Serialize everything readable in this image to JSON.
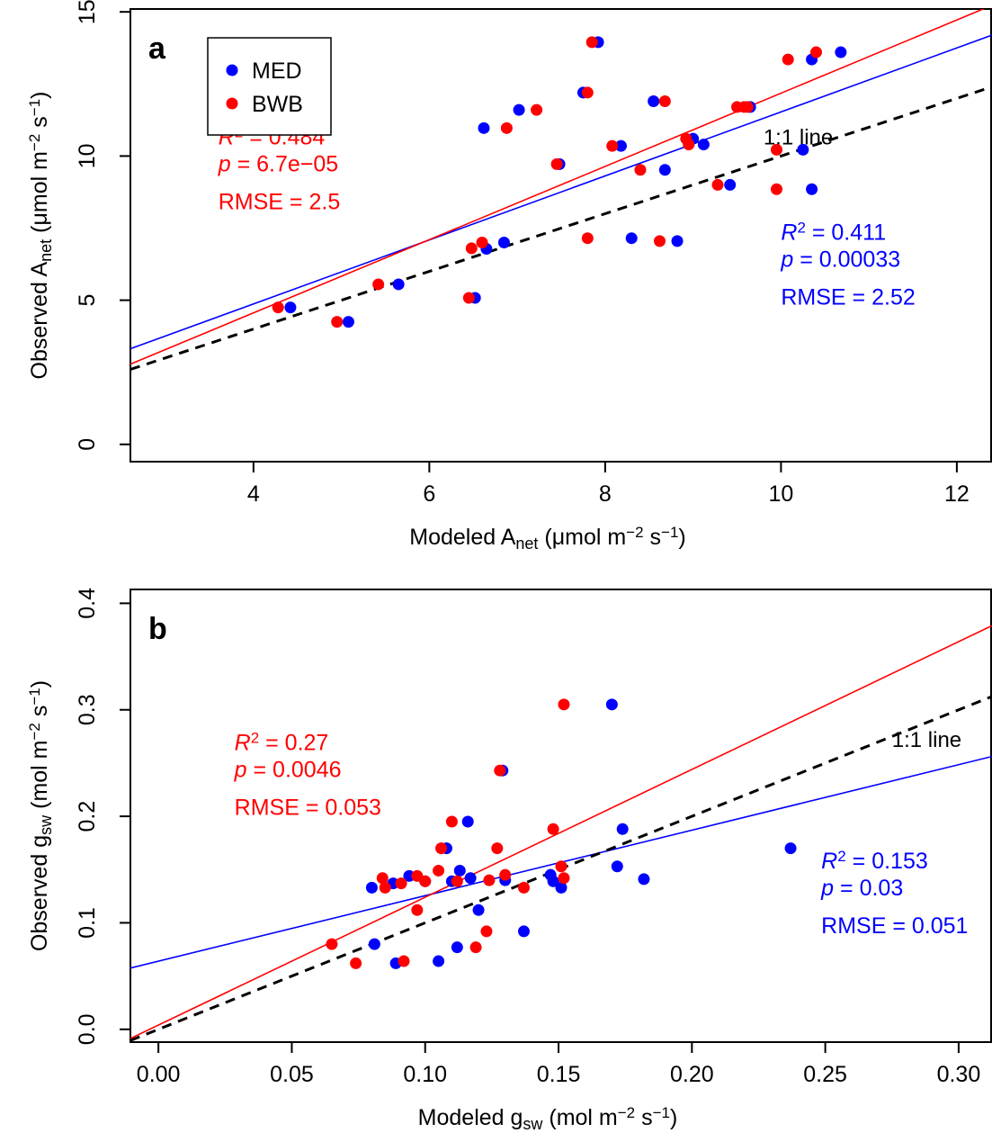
{
  "chart_data": [
    {
      "type": "scatter",
      "panel_label": "a",
      "xlabel": {
        "main": "Modeled A",
        "sub": "net",
        "unit_open": " (μmol m",
        "sup1": "−2",
        "unit_mid": " s",
        "sup2": "−1",
        "unit_close": ")"
      },
      "ylabel": {
        "main": "Observed A",
        "sub": "net",
        "unit_open": " (μmol m",
        "sup1": "−2",
        "unit_mid": " s",
        "sup2": "−1",
        "unit_close": ")"
      },
      "xlim": [
        2.6,
        12.4
      ],
      "ylim": [
        -0.6,
        15.1
      ],
      "xticks": [
        4,
        6,
        8,
        10,
        12
      ],
      "xtick_labels": [
        "4",
        "6",
        "8",
        "10",
        "12"
      ],
      "yticks": [
        0,
        5,
        10,
        15
      ],
      "ytick_labels": [
        "0",
        "5",
        "10",
        "15"
      ],
      "legend": {
        "position": "top-left",
        "entries": [
          {
            "name": "MED",
            "color": "#0000ff"
          },
          {
            "name": "BWB",
            "color": "#ff0000"
          }
        ]
      },
      "one_to_one_label": "1:1 line",
      "one_to_one_label_pos": [
        9.8,
        10.4
      ],
      "series": [
        {
          "name": "MED",
          "color": "#0000ff",
          "fit": {
            "intercept": 0.43,
            "slope": 1.11
          },
          "annotation": {
            "r2_symbol": "R",
            "r2_sup": "2",
            "r2_value": " = 0.411",
            "p_symbol": "p",
            "p_value": " = 0.00033",
            "rmse": "RMSE = 2.52",
            "anchor": [
              10.0,
              7.1
            ]
          },
          "points": [
            [
              4.42,
              4.75
            ],
            [
              5.08,
              4.25
            ],
            [
              5.65,
              5.55
            ],
            [
              6.52,
              5.08
            ],
            [
              6.62,
              10.97
            ],
            [
              6.65,
              6.78
            ],
            [
              6.85,
              7.0
            ],
            [
              7.02,
              11.6
            ],
            [
              7.48,
              9.72
            ],
            [
              7.75,
              12.2
            ],
            [
              7.92,
              13.95
            ],
            [
              8.18,
              10.35
            ],
            [
              8.3,
              7.15
            ],
            [
              8.55,
              11.9
            ],
            [
              8.68,
              9.52
            ],
            [
              8.82,
              7.05
            ],
            [
              8.95,
              10.55
            ],
            [
              9.0,
              10.6
            ],
            [
              9.12,
              10.4
            ],
            [
              9.42,
              9.0
            ],
            [
              9.65,
              11.7
            ],
            [
              10.25,
              10.22
            ],
            [
              10.35,
              8.85
            ],
            [
              10.35,
              13.35
            ],
            [
              10.68,
              13.6
            ]
          ]
        },
        {
          "name": "BWB",
          "color": "#ff0000",
          "fit": {
            "intercept": -0.52,
            "slope": 1.27
          },
          "annotation": {
            "r2_symbol": "R",
            "r2_sup": "2",
            "r2_value": " = 0.484",
            "p_symbol": "p",
            "p_value": " = 6.7e−05",
            "rmse": "RMSE = 2.5",
            "anchor": [
              3.6,
              10.4
            ]
          },
          "points": [
            [
              4.28,
              4.75
            ],
            [
              4.95,
              4.25
            ],
            [
              5.42,
              5.55
            ],
            [
              6.45,
              5.08
            ],
            [
              6.48,
              6.8
            ],
            [
              6.6,
              7.0
            ],
            [
              6.88,
              10.97
            ],
            [
              7.22,
              11.6
            ],
            [
              7.45,
              9.72
            ],
            [
              7.8,
              12.2
            ],
            [
              7.8,
              7.15
            ],
            [
              7.85,
              13.95
            ],
            [
              8.08,
              10.35
            ],
            [
              8.4,
              9.52
            ],
            [
              8.62,
              7.05
            ],
            [
              8.68,
              11.9
            ],
            [
              8.92,
              10.6
            ],
            [
              8.95,
              10.4
            ],
            [
              9.28,
              9.0
            ],
            [
              9.5,
              11.7
            ],
            [
              9.58,
              11.7
            ],
            [
              9.62,
              11.7
            ],
            [
              9.95,
              10.22
            ],
            [
              9.95,
              8.85
            ],
            [
              10.08,
              13.35
            ],
            [
              10.4,
              13.6
            ]
          ]
        }
      ]
    },
    {
      "type": "scatter",
      "panel_label": "b",
      "xlabel": {
        "main": "Modeled g",
        "sub": "sw",
        "unit_open": " (mol m",
        "sup1": "−2",
        "unit_mid": " s",
        "sup2": "−1",
        "unit_close": ")"
      },
      "ylabel": {
        "main": "Observed g",
        "sub": "sw",
        "unit_open": " (mol m",
        "sup1": "−2",
        "unit_mid": " s",
        "sup2": "−1",
        "unit_close": ")"
      },
      "xlim": [
        -0.0105,
        0.3125
      ],
      "ylim": [
        -0.012,
        0.413
      ],
      "xticks": [
        0.0,
        0.05,
        0.1,
        0.15,
        0.2,
        0.25,
        0.3
      ],
      "xtick_labels": [
        "0.00",
        "0.05",
        "0.10",
        "0.15",
        "0.20",
        "0.25",
        "0.30"
      ],
      "yticks": [
        0.0,
        0.1,
        0.2,
        0.3,
        0.4
      ],
      "ytick_labels": [
        "0.0",
        "0.1",
        "0.2",
        "0.3",
        "0.4"
      ],
      "one_to_one_label": "1:1 line",
      "one_to_one_label_pos": [
        0.275,
        0.265
      ],
      "series": [
        {
          "name": "MED",
          "color": "#0000ff",
          "fit": {
            "intercept": 0.064,
            "slope": 0.615
          },
          "annotation": {
            "r2_symbol": "R",
            "r2_sup": "2",
            "r2_value": " = 0.153",
            "p_symbol": "p",
            "p_value": " = 0.03",
            "rmse": "RMSE = 0.051",
            "anchor": [
              0.2485,
              0.151
            ]
          },
          "points": [
            [
              0.08,
              0.133
            ],
            [
              0.081,
              0.08
            ],
            [
              0.088,
              0.137
            ],
            [
              0.089,
              0.062
            ],
            [
              0.094,
              0.144
            ],
            [
              0.1,
              0.139
            ],
            [
              0.105,
              0.064
            ],
            [
              0.108,
              0.17
            ],
            [
              0.11,
              0.139
            ],
            [
              0.112,
              0.077
            ],
            [
              0.113,
              0.149
            ],
            [
              0.116,
              0.195
            ],
            [
              0.117,
              0.142
            ],
            [
              0.12,
              0.112
            ],
            [
              0.129,
              0.243
            ],
            [
              0.13,
              0.14
            ],
            [
              0.137,
              0.092
            ],
            [
              0.147,
              0.145
            ],
            [
              0.148,
              0.139
            ],
            [
              0.151,
              0.133
            ],
            [
              0.17,
              0.305
            ],
            [
              0.172,
              0.153
            ],
            [
              0.174,
              0.188
            ],
            [
              0.182,
              0.141
            ],
            [
              0.237,
              0.17
            ]
          ]
        },
        {
          "name": "BWB",
          "color": "#ff0000",
          "fit": {
            "intercept": 0.004,
            "slope": 1.2
          },
          "annotation": {
            "r2_symbol": "R",
            "r2_sup": "2",
            "r2_value": " = 0.27",
            "p_symbol": "p",
            "p_value": " = 0.0046",
            "rmse": "RMSE = 0.053",
            "anchor": [
              0.0285,
              0.262
            ]
          },
          "points": [
            [
              0.065,
              0.08
            ],
            [
              0.074,
              0.062
            ],
            [
              0.084,
              0.142
            ],
            [
              0.085,
              0.133
            ],
            [
              0.091,
              0.137
            ],
            [
              0.092,
              0.064
            ],
            [
              0.097,
              0.144
            ],
            [
              0.097,
              0.112
            ],
            [
              0.1,
              0.139
            ],
            [
              0.105,
              0.149
            ],
            [
              0.106,
              0.17
            ],
            [
              0.11,
              0.195
            ],
            [
              0.112,
              0.139
            ],
            [
              0.119,
              0.077
            ],
            [
              0.123,
              0.092
            ],
            [
              0.124,
              0.14
            ],
            [
              0.127,
              0.17
            ],
            [
              0.128,
              0.243
            ],
            [
              0.13,
              0.145
            ],
            [
              0.137,
              0.133
            ],
            [
              0.148,
              0.188
            ],
            [
              0.151,
              0.153
            ],
            [
              0.152,
              0.142
            ],
            [
              0.152,
              0.305
            ]
          ]
        }
      ]
    }
  ]
}
